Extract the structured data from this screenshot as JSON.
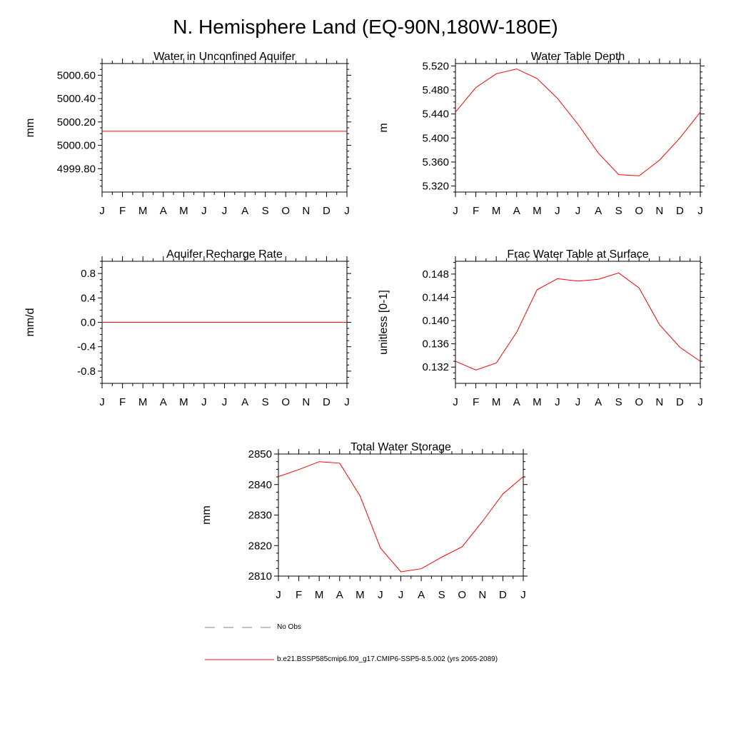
{
  "page": {
    "title": "N. Hemisphere Land (EQ-90N,180W-180E)"
  },
  "legend": {
    "entries": [
      {
        "label": "No Obs",
        "style": "dashed",
        "color": "#808080"
      },
      {
        "label": "b.e21.BSSP585cmip6.f09_g17.CMIP6-SSP5-8.5.002 (yrs 2065-2089)",
        "style": "solid",
        "color": "#ff0000"
      }
    ]
  },
  "chart_data": [
    {
      "type": "line",
      "title": "Water in Unconfined Aquifer",
      "ylabel": "mm",
      "xlabel": "",
      "categories": [
        "J",
        "F",
        "M",
        "A",
        "M",
        "J",
        "J",
        "A",
        "S",
        "O",
        "N",
        "D",
        "J"
      ],
      "ylim": [
        4999.6,
        5000.7
      ],
      "yticks": [
        4999.8,
        5000.0,
        5000.2,
        5000.4,
        5000.6
      ],
      "ytick_labels": [
        "4999.80",
        "5000.00",
        "5000.20",
        "5000.40",
        "5000.60"
      ],
      "series": [
        {
          "color": "#ff0000",
          "values": [
            5000.12,
            5000.12,
            5000.12,
            5000.12,
            5000.12,
            5000.12,
            5000.12,
            5000.12,
            5000.12,
            5000.12,
            5000.12,
            5000.12,
            5000.12
          ]
        }
      ]
    },
    {
      "type": "line",
      "title": "Water Table Depth",
      "ylabel": "m",
      "xlabel": "",
      "categories": [
        "J",
        "F",
        "M",
        "A",
        "M",
        "J",
        "J",
        "A",
        "S",
        "O",
        "N",
        "D",
        "J"
      ],
      "ylim": [
        5.31,
        5.524
      ],
      "yticks": [
        5.32,
        5.36,
        5.4,
        5.44,
        5.48,
        5.52
      ],
      "ytick_labels": [
        "5.320",
        "5.360",
        "5.400",
        "5.440",
        "5.480",
        "5.520"
      ],
      "series": [
        {
          "color": "#ff0000",
          "values": [
            5.443,
            5.484,
            5.507,
            5.515,
            5.499,
            5.466,
            5.423,
            5.375,
            5.339,
            5.337,
            5.363,
            5.4,
            5.443
          ]
        }
      ]
    },
    {
      "type": "line",
      "title": "Aquifer Recharge Rate",
      "ylabel": "mm/d",
      "xlabel": "",
      "categories": [
        "J",
        "F",
        "M",
        "A",
        "M",
        "J",
        "J",
        "A",
        "S",
        "O",
        "N",
        "D",
        "J"
      ],
      "ylim": [
        -1.0,
        1.0
      ],
      "yticks": [
        -0.8,
        -0.4,
        0.0,
        0.4,
        0.8
      ],
      "ytick_labels": [
        "-0.8",
        "-0.4",
        "0.0",
        "0.4",
        "0.8"
      ],
      "series": [
        {
          "color": "#ff0000",
          "values": [
            0,
            0,
            0,
            0,
            0,
            0,
            0,
            0,
            0,
            0,
            0,
            0,
            0
          ]
        }
      ]
    },
    {
      "type": "line",
      "title": "Frac Water Table at Surface",
      "ylabel": "unitless [0-1]",
      "xlabel": "",
      "categories": [
        "J",
        "F",
        "M",
        "A",
        "M",
        "J",
        "J",
        "A",
        "S",
        "O",
        "N",
        "D",
        "J"
      ],
      "ylim": [
        0.1292,
        0.1502
      ],
      "yticks": [
        0.132,
        0.136,
        0.14,
        0.144,
        0.148
      ],
      "ytick_labels": [
        "0.132",
        "0.136",
        "0.140",
        "0.144",
        "0.148"
      ],
      "series": [
        {
          "color": "#ff0000",
          "values": [
            0.133,
            0.1315,
            0.1327,
            0.138,
            0.1453,
            0.1472,
            0.1468,
            0.1471,
            0.1482,
            0.1456,
            0.1393,
            0.1354,
            0.133
          ]
        }
      ]
    },
    {
      "type": "line",
      "title": "Total Water Storage",
      "ylabel": "mm",
      "xlabel": "",
      "categories": [
        "J",
        "F",
        "M",
        "A",
        "M",
        "J",
        "J",
        "A",
        "S",
        "O",
        "N",
        "D",
        "J"
      ],
      "ylim": [
        2810,
        2850
      ],
      "yticks": [
        2810,
        2820,
        2830,
        2840,
        2850
      ],
      "ytick_labels": [
        "2810",
        "2820",
        "2830",
        "2840",
        "2850"
      ],
      "series": [
        {
          "color": "#ff0000",
          "values": [
            2842.6,
            2844.9,
            2847.5,
            2847.0,
            2836.3,
            2819.2,
            2811.4,
            2812.4,
            2816.2,
            2819.6,
            2827.9,
            2836.9,
            2842.6
          ]
        }
      ]
    }
  ]
}
